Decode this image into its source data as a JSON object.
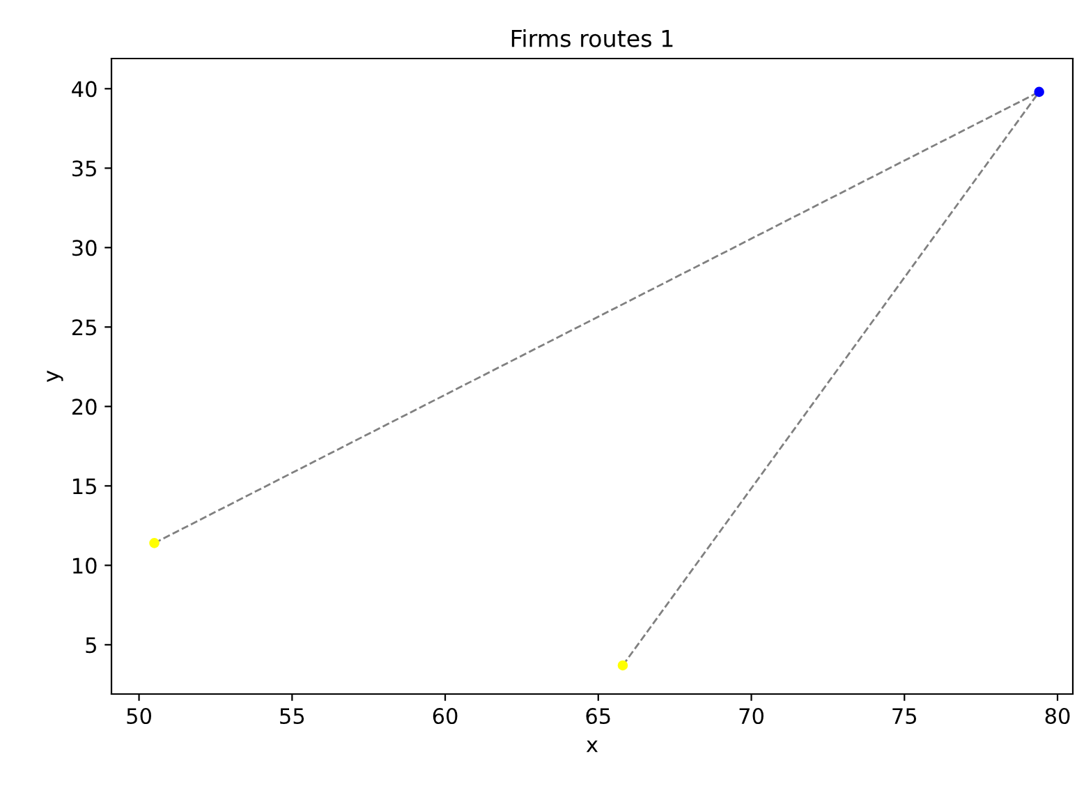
{
  "chart_data": {
    "type": "scatter",
    "title": "Firms routes 1",
    "xlabel": "x",
    "ylabel": "y",
    "xlim": [
      49.1,
      80.5
    ],
    "ylim": [
      1.9,
      41.9
    ],
    "xticks": [
      50,
      55,
      60,
      65,
      70,
      75,
      80
    ],
    "yticks": [
      5,
      10,
      15,
      20,
      25,
      30,
      35,
      40
    ],
    "grid": false,
    "legend": false,
    "series": [
      {
        "type": "line",
        "color": "#808080",
        "line_style": "dashed",
        "marker": "none",
        "x": [
          50.5,
          79.4
        ],
        "values": [
          11.4,
          39.8
        ]
      },
      {
        "type": "line",
        "color": "#808080",
        "line_style": "dashed",
        "marker": "none",
        "x": [
          65.8,
          79.4
        ],
        "values": [
          3.7,
          39.8
        ]
      },
      {
        "color": "#ffff00",
        "marker": "circle",
        "x": [
          50.5,
          65.8
        ],
        "values": [
          11.4,
          3.7
        ]
      },
      {
        "color": "#0000ff",
        "marker": "circle",
        "x": [
          79.4
        ],
        "values": [
          39.8
        ]
      }
    ]
  }
}
